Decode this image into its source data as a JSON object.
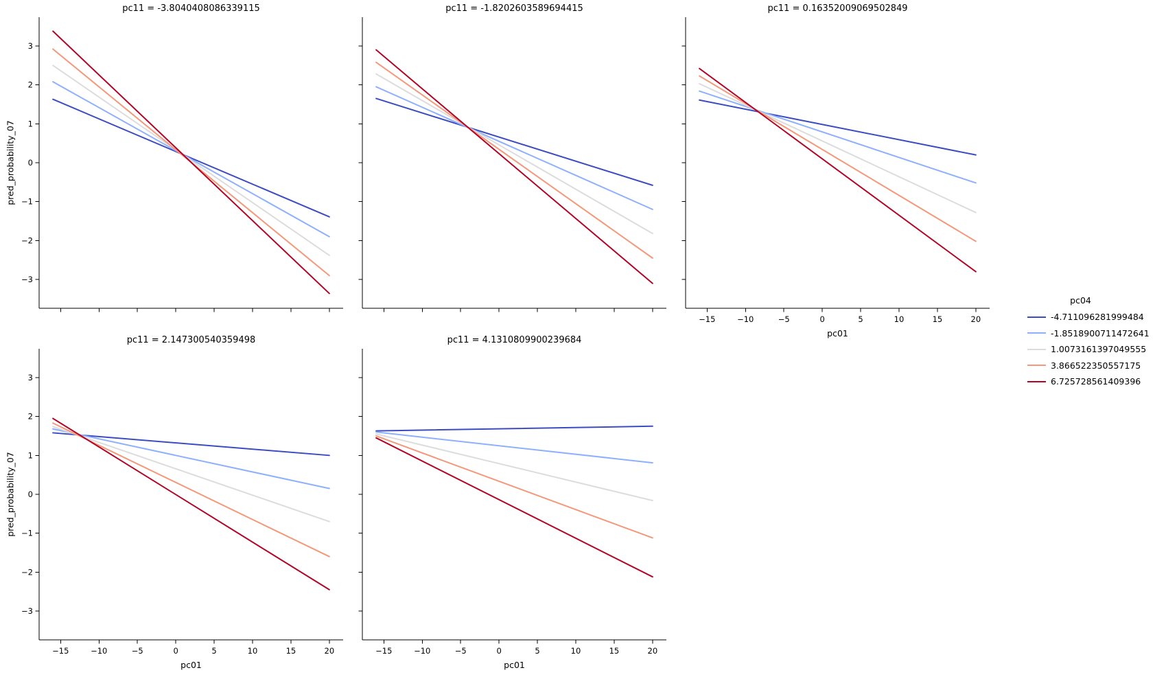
{
  "chart_data": {
    "type": "line",
    "figure_kind": "seaborn-facet-grid",
    "facet_variable": "pc11",
    "hue_variable": "pc04",
    "xlabel": "pc01",
    "ylabel": "pred_probability_07",
    "x_ticks": [
      -15,
      -10,
      -5,
      0,
      5,
      10,
      15,
      20
    ],
    "x_tick_labels": [
      "−15",
      "−10",
      "−5",
      "0",
      "5",
      "10",
      "15",
      "20"
    ],
    "y_ticks": [
      -3,
      -2,
      -1,
      0,
      1,
      2,
      3
    ],
    "y_tick_labels": [
      "−3",
      "−2",
      "−1",
      "0",
      "1",
      "2",
      "3"
    ],
    "xlim": [
      -17.8,
      21.8
    ],
    "ylim": [
      -3.74,
      3.74
    ],
    "line_x_range": [
      -16,
      20
    ],
    "grid": false,
    "legend": {
      "title": "pc04",
      "position": "right",
      "entries": [
        {
          "label": "-4.711096281999484",
          "color": "#3b4cc0"
        },
        {
          "label": "-1.8518900711472641",
          "color": "#8db0fe"
        },
        {
          "label": "1.0073161397049555",
          "color": "#dcdcdc"
        },
        {
          "label": "3.866522350557175",
          "color": "#f4987a"
        },
        {
          "label": "6.725728561409396",
          "color": "#b40426"
        }
      ]
    },
    "facets": [
      {
        "title": "pc11 = -3.8040408086339115",
        "col": 0,
        "row": 0,
        "show_x_labels": false,
        "show_y_labels": true,
        "series": [
          {
            "pc04": "-4.711096281999484",
            "color": "#3b4cc0",
            "y_start": 1.63,
            "y_end": -1.39
          },
          {
            "pc04": "-1.8518900711472641",
            "color": "#8db0fe",
            "y_start": 2.08,
            "y_end": -1.9
          },
          {
            "pc04": "1.0073161397049555",
            "color": "#dcdcdc",
            "y_start": 2.5,
            "y_end": -2.38
          },
          {
            "pc04": "3.866522350557175",
            "color": "#f4987a",
            "y_start": 2.92,
            "y_end": -2.9
          },
          {
            "pc04": "6.725728561409396",
            "color": "#b40426",
            "y_start": 3.38,
            "y_end": -3.36
          }
        ]
      },
      {
        "title": "pc11 = -1.8202603589694415",
        "col": 1,
        "row": 0,
        "show_x_labels": false,
        "show_y_labels": false,
        "series": [
          {
            "pc04": "-4.711096281999484",
            "color": "#3b4cc0",
            "y_start": 1.65,
            "y_end": -0.58
          },
          {
            "pc04": "-1.8518900711472641",
            "color": "#8db0fe",
            "y_start": 1.95,
            "y_end": -1.2
          },
          {
            "pc04": "1.0073161397049555",
            "color": "#dcdcdc",
            "y_start": 2.28,
            "y_end": -1.82
          },
          {
            "pc04": "3.866522350557175",
            "color": "#f4987a",
            "y_start": 2.58,
            "y_end": -2.45
          },
          {
            "pc04": "6.725728561409396",
            "color": "#b40426",
            "y_start": 2.9,
            "y_end": -3.1
          }
        ]
      },
      {
        "title": "pc11 = 0.16352009069502849",
        "col": 2,
        "row": 0,
        "show_x_labels": true,
        "show_y_labels": false,
        "series": [
          {
            "pc04": "-4.711096281999484",
            "color": "#3b4cc0",
            "y_start": 1.61,
            "y_end": 0.2
          },
          {
            "pc04": "-1.8518900711472641",
            "color": "#8db0fe",
            "y_start": 1.84,
            "y_end": -0.52
          },
          {
            "pc04": "1.0073161397049555",
            "color": "#dcdcdc",
            "y_start": 2.03,
            "y_end": -1.28
          },
          {
            "pc04": "3.866522350557175",
            "color": "#f4987a",
            "y_start": 2.23,
            "y_end": -2.02
          },
          {
            "pc04": "6.725728561409396",
            "color": "#b40426",
            "y_start": 2.42,
            "y_end": -2.8
          }
        ]
      },
      {
        "title": "pc11 = 2.147300540359498",
        "col": 0,
        "row": 1,
        "show_x_labels": true,
        "show_y_labels": true,
        "series": [
          {
            "pc04": "-4.711096281999484",
            "color": "#3b4cc0",
            "y_start": 1.58,
            "y_end": 1.0
          },
          {
            "pc04": "-1.8518900711472641",
            "color": "#8db0fe",
            "y_start": 1.68,
            "y_end": 0.15
          },
          {
            "pc04": "1.0073161397049555",
            "color": "#dcdcdc",
            "y_start": 1.74,
            "y_end": -0.7
          },
          {
            "pc04": "3.866522350557175",
            "color": "#f4987a",
            "y_start": 1.83,
            "y_end": -1.6
          },
          {
            "pc04": "6.725728561409396",
            "color": "#b40426",
            "y_start": 1.95,
            "y_end": -2.45
          }
        ]
      },
      {
        "title": "pc11 = 4.1310809900239684",
        "col": 1,
        "row": 1,
        "show_x_labels": true,
        "show_y_labels": false,
        "series": [
          {
            "pc04": "-4.711096281999484",
            "color": "#3b4cc0",
            "y_start": 1.63,
            "y_end": 1.75
          },
          {
            "pc04": "-1.8518900711472641",
            "color": "#8db0fe",
            "y_start": 1.6,
            "y_end": 0.81
          },
          {
            "pc04": "1.0073161397049555",
            "color": "#dcdcdc",
            "y_start": 1.55,
            "y_end": -0.16
          },
          {
            "pc04": "3.866522350557175",
            "color": "#f4987a",
            "y_start": 1.5,
            "y_end": -1.12
          },
          {
            "pc04": "6.725728561409396",
            "color": "#b40426",
            "y_start": 1.45,
            "y_end": -2.12
          }
        ]
      }
    ]
  }
}
